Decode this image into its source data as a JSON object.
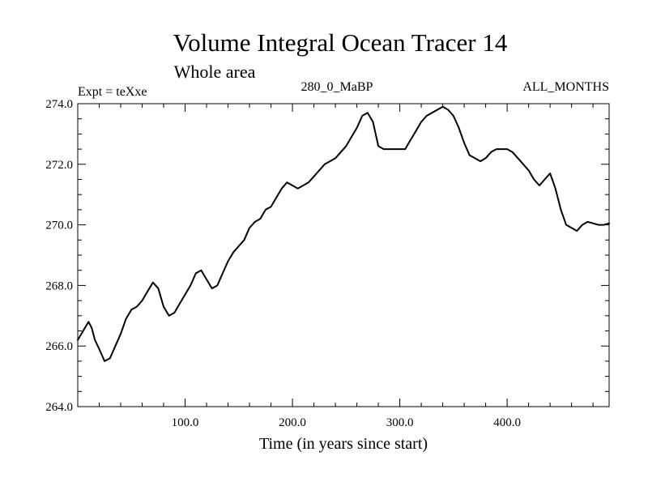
{
  "chart_data": {
    "type": "line",
    "title": "Volume Integral Ocean Tracer 14",
    "subtitle": "Whole area",
    "info_left": "Expt = teXxe",
    "info_center": "280_0_MaBP",
    "info_right": "ALL_MONTHS",
    "xlabel": "Time (in years since start)",
    "ylabel": "",
    "xlim": [
      0,
      495
    ],
    "ylim": [
      264,
      274
    ],
    "x_ticks": [
      100,
      200,
      300,
      400
    ],
    "x_tick_labels": [
      "100.0",
      "200.0",
      "300.0",
      "400.0"
    ],
    "y_ticks": [
      264,
      266,
      268,
      270,
      272,
      274
    ],
    "y_tick_labels": [
      "264.0",
      "266.0",
      "268.0",
      "270.0",
      "272.0",
      "274.0"
    ],
    "grid": false,
    "series": [
      {
        "name": "Volume Integral Ocean Tracer 14",
        "x": [
          0,
          5,
          10,
          13,
          16,
          20,
          25,
          30,
          35,
          40,
          45,
          50,
          55,
          60,
          65,
          70,
          75,
          80,
          85,
          90,
          95,
          100,
          105,
          110,
          115,
          120,
          125,
          130,
          135,
          140,
          145,
          150,
          155,
          160,
          165,
          170,
          175,
          180,
          185,
          190,
          195,
          200,
          205,
          210,
          215,
          220,
          225,
          230,
          235,
          240,
          245,
          250,
          255,
          260,
          265,
          270,
          275,
          280,
          285,
          290,
          295,
          300,
          305,
          310,
          315,
          320,
          325,
          330,
          335,
          340,
          345,
          350,
          355,
          360,
          365,
          370,
          375,
          380,
          385,
          390,
          395,
          400,
          405,
          410,
          415,
          420,
          425,
          430,
          435,
          440,
          445,
          450,
          455,
          460,
          465,
          470,
          475,
          480,
          485,
          490,
          495
        ],
        "values": [
          266.2,
          266.5,
          266.8,
          266.6,
          266.2,
          265.9,
          265.5,
          265.6,
          266.0,
          266.4,
          266.9,
          267.2,
          267.3,
          267.5,
          267.8,
          268.1,
          267.9,
          267.3,
          267.0,
          267.1,
          267.4,
          267.7,
          268.0,
          268.4,
          268.5,
          268.2,
          267.9,
          268.0,
          268.4,
          268.8,
          269.1,
          269.3,
          269.5,
          269.9,
          270.1,
          270.2,
          270.5,
          270.6,
          270.9,
          271.2,
          271.4,
          271.3,
          271.2,
          271.3,
          271.4,
          271.6,
          271.8,
          272.0,
          272.1,
          272.2,
          272.4,
          272.6,
          272.9,
          273.2,
          273.6,
          273.7,
          273.4,
          272.6,
          272.5,
          272.5,
          272.5,
          272.5,
          272.5,
          272.8,
          273.1,
          273.4,
          273.6,
          273.7,
          273.8,
          273.9,
          273.8,
          273.6,
          273.2,
          272.7,
          272.3,
          272.2,
          272.1,
          272.2,
          272.4,
          272.5,
          272.5,
          272.5,
          272.4,
          272.2,
          272.0,
          271.8,
          271.5,
          271.3,
          271.5,
          271.7,
          271.2,
          270.5,
          270.0,
          269.9,
          269.8,
          270.0,
          270.1,
          270.05,
          270.0,
          270.0,
          270.05
        ]
      }
    ]
  }
}
